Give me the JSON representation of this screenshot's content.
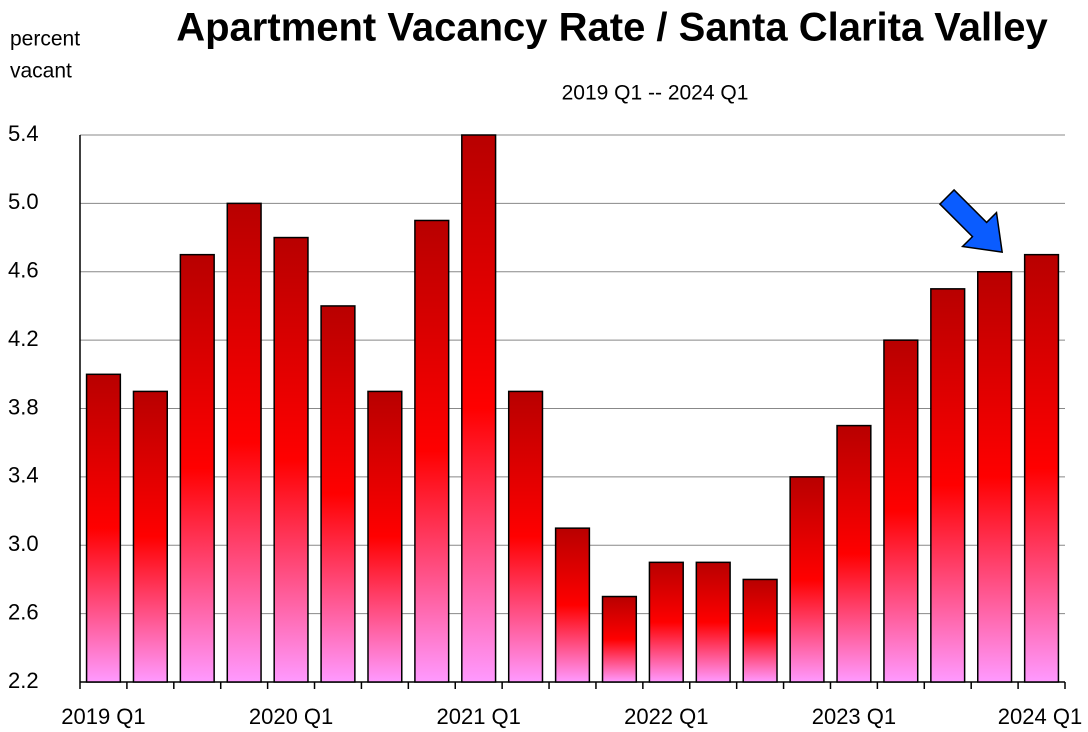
{
  "chart_data": {
    "type": "bar",
    "title": "Apartment Vacancy Rate / Santa Clarita Valley",
    "subtitle": "2019 Q1 -- 2024 Q1",
    "ylabel": [
      "percent",
      "vacant"
    ],
    "categories": [
      "2019 Q1",
      null,
      null,
      null,
      "2020 Q1",
      null,
      null,
      null,
      "2021 Q1",
      null,
      null,
      null,
      "2022 Q1",
      null,
      null,
      null,
      "2023 Q1",
      null,
      null,
      null,
      "2024 Q1"
    ],
    "values": [
      4.0,
      3.9,
      4.7,
      5.0,
      4.8,
      4.4,
      3.9,
      4.9,
      5.4,
      3.9,
      3.1,
      2.7,
      2.9,
      2.9,
      2.8,
      3.4,
      3.7,
      4.2,
      4.5,
      4.6,
      4.7
    ],
    "gradient": [
      "#b80000",
      "#ff0000",
      "#ff99ff"
    ],
    "ylim": [
      2.2,
      5.4
    ],
    "yticks": [
      2.2,
      2.6,
      {
        "value": 3,
        "label": "3.0"
      },
      3.4,
      3.8,
      4.2,
      4.6,
      {
        "value": 5,
        "label": "5.0"
      },
      5.4
    ],
    "grid": true
  }
}
